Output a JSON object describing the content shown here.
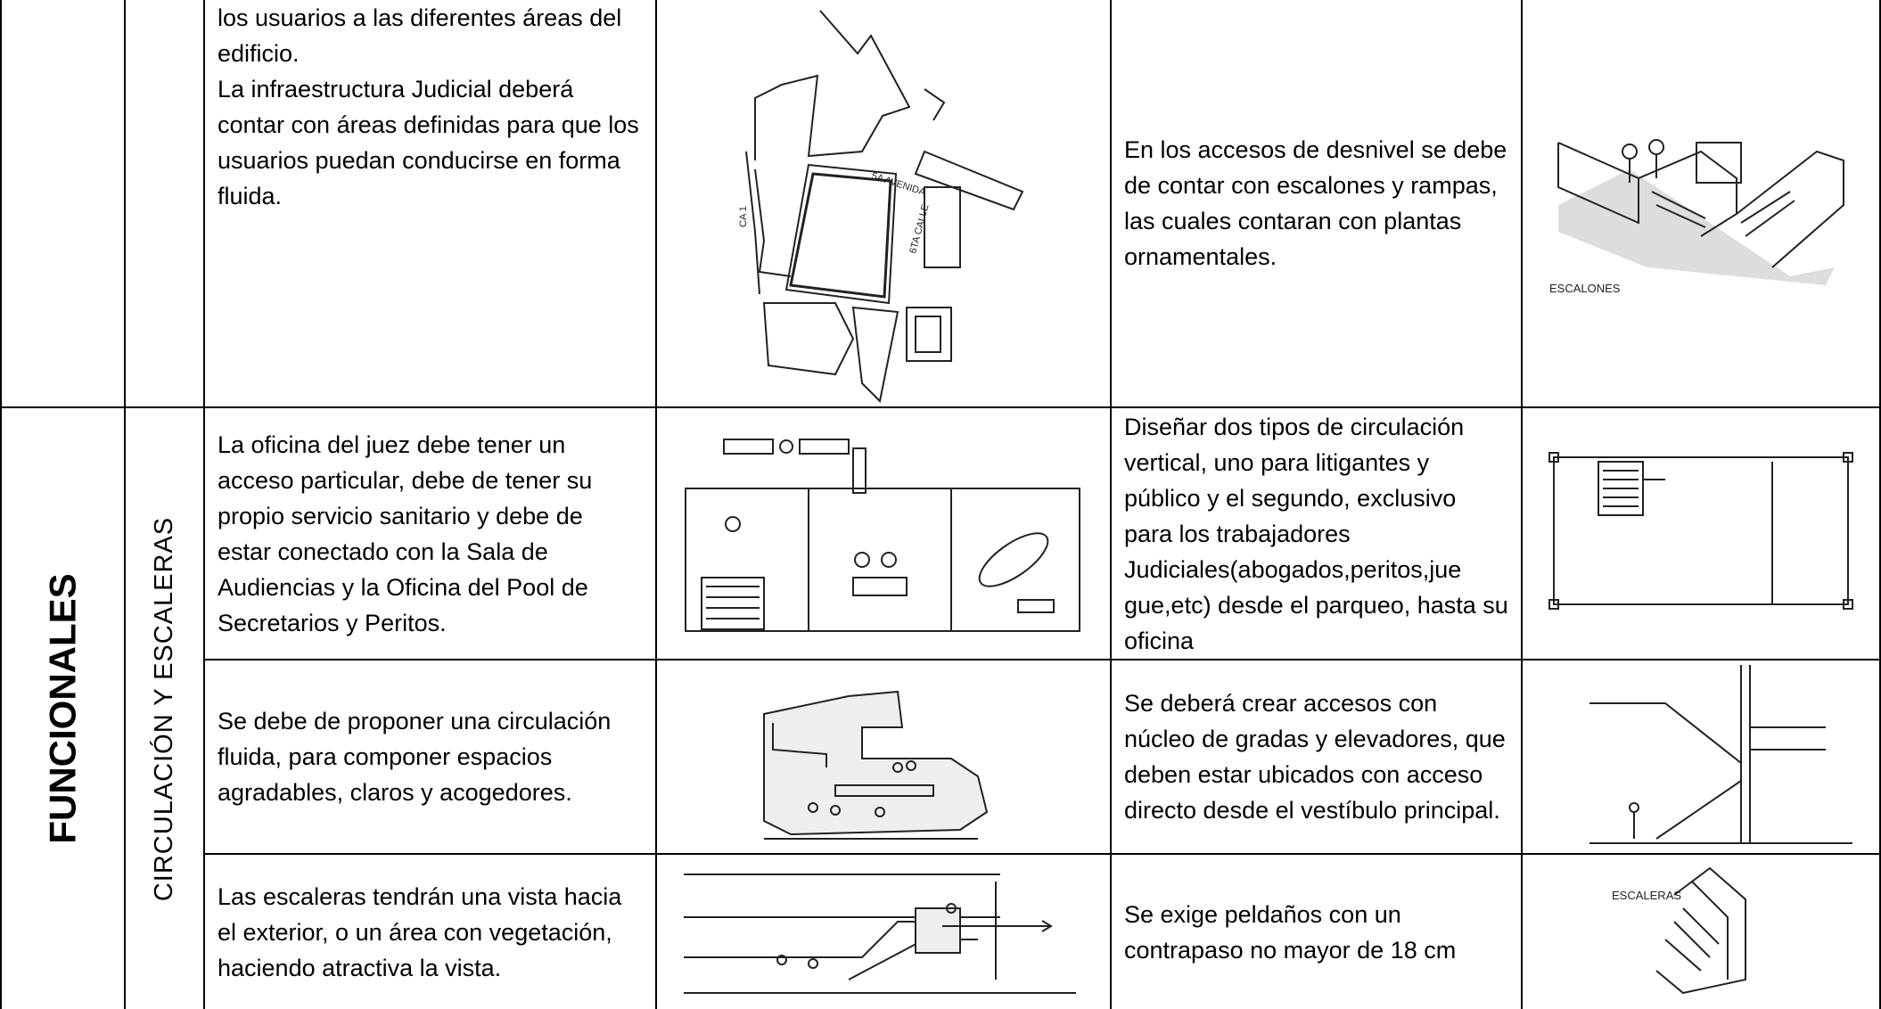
{
  "table": {
    "group": "FUNCIONALES",
    "subgroup": "CIRCULACIÓN Y ESCALERAS",
    "rows": [
      {
        "criterion": [
          "los usuarios a las diferentes áreas del edificio.",
          "La infraestructura Judicial deberá contar con áreas definidas para que los usuarios puedan conducirse en forma fluida."
        ],
        "recommendation": "En los accesos de desnivel se debe de contar con escalones y rampas, las cuales contaran con plantas ornamentales."
      },
      {
        "criterion": [
          "La oficina del juez debe tener un acceso particular, debe de tener su propio servicio sanitario y debe de estar conectado con la Sala de Audiencias y la Oficina del Pool de Secretarios y Peritos."
        ],
        "recommendation": "Diseñar dos tipos de circulación vertical, uno para litigantes y público y el segundo, exclusivo para los trabajadores Judiciales(abogados,peritos,jue gue,etc) desde el parqueo, hasta su oficina"
      },
      {
        "criterion": [
          "Se debe de proponer una circulación fluida, para componer espacios agradables, claros y acogedores."
        ],
        "recommendation": "Se deberá crear accesos con núcleo de gradas y elevadores, que deben estar ubicados con acceso directo desde el vestíbulo principal."
      },
      {
        "criterion": [
          "Las escaleras tendrán una vista hacia el exterior, o un área con vegetación, haciendo atractiva la vista."
        ],
        "recommendation": "Se exige peldaños con un contrapaso no mayor de 18 cm"
      }
    ]
  },
  "drawings": {
    "site_plan_labels": [
      "5A AVENIDA",
      "CA 1",
      "6TA CALLE"
    ],
    "steps_label": "ESCALONES",
    "stairs_label": "ESCALERAS"
  }
}
